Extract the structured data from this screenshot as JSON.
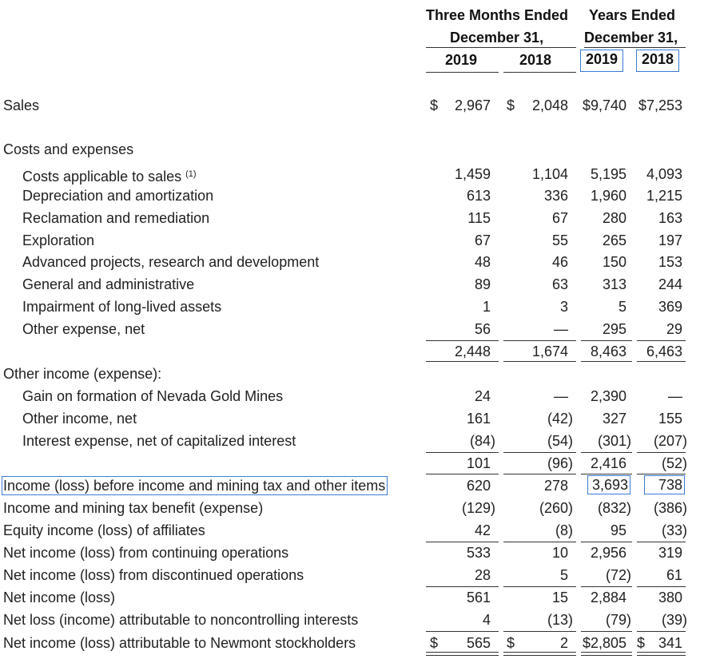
{
  "header": {
    "three_months_line1": "Three Months Ended",
    "three_months_line2": "December 31,",
    "years_line1": "Years Ended",
    "years_line2": "December 31,",
    "col_q2019": "2019",
    "col_q2018": "2018",
    "col_y2019": "2019",
    "col_y2018": "2018"
  },
  "rows": {
    "sales": {
      "label": "Sales",
      "q2019": "2,967",
      "q2018": "2,048",
      "y2019": "$9,740",
      "y2018": "$7,253"
    },
    "costs_header": {
      "label": "Costs and expenses"
    },
    "costs_applicable": {
      "label": "Costs applicable to sales",
      "note": "(1)",
      "q2019": "1,459",
      "q2018": "1,104",
      "y2019": "5,195",
      "y2018": "4,093"
    },
    "depreciation": {
      "label": "Depreciation and amortization",
      "q2019": "613",
      "q2018": "336",
      "y2019": "1,960",
      "y2018": "1,215"
    },
    "reclamation": {
      "label": "Reclamation and remediation",
      "q2019": "115",
      "q2018": "67",
      "y2019": "280",
      "y2018": "163"
    },
    "exploration": {
      "label": "Exploration",
      "q2019": "67",
      "q2018": "55",
      "y2019": "265",
      "y2018": "197"
    },
    "advanced_projects": {
      "label": "Advanced projects, research and development",
      "q2019": "48",
      "q2018": "46",
      "y2019": "150",
      "y2018": "153"
    },
    "general_admin": {
      "label": "General and administrative",
      "q2019": "89",
      "q2018": "63",
      "y2019": "313",
      "y2018": "244"
    },
    "impairment": {
      "label": "Impairment of long-lived assets",
      "q2019": "1",
      "q2018": "3",
      "y2019": "5",
      "y2018": "369"
    },
    "other_expense": {
      "label": "Other expense, net",
      "q2019": "56",
      "q2018": "—",
      "y2019": "295",
      "y2018": "29"
    },
    "costs_total": {
      "q2019": "2,448",
      "q2018": "1,674",
      "y2019": "8,463",
      "y2018": "6,463"
    },
    "other_income_header": {
      "label": "Other income (expense):"
    },
    "gain_nevada": {
      "label": "Gain on formation of Nevada Gold Mines",
      "q2019": "24",
      "q2018": "—",
      "y2019": "2,390",
      "y2018": "—"
    },
    "other_income_net": {
      "label": "Other income, net",
      "q2019": "161",
      "q2018": "(42)",
      "y2019": "327",
      "y2018": "155"
    },
    "interest_expense": {
      "label": "Interest expense, net of capitalized interest",
      "q2019": "(84)",
      "q2018": "(54)",
      "y2019": "(301)",
      "y2018": "(207)"
    },
    "other_total": {
      "q2019": "101",
      "q2018": "(96)",
      "y2019": "2,416",
      "y2018": "(52)"
    },
    "income_before_tax": {
      "label": "Income (loss) before income and mining tax and other items",
      "q2019": "620",
      "q2018": "278",
      "y2019": "3,693",
      "y2018": "738"
    },
    "tax_benefit": {
      "label": "Income and mining tax benefit (expense)",
      "q2019": "(129)",
      "q2018": "(260)",
      "y2019": "(832)",
      "y2018": "(386)"
    },
    "equity_income": {
      "label": "Equity income (loss) of affiliates",
      "q2019": "42",
      "q2018": "(8)",
      "y2019": "95",
      "y2018": "(33)"
    },
    "net_continuing": {
      "label": "Net income (loss) from continuing operations",
      "q2019": "533",
      "q2018": "10",
      "y2019": "2,956",
      "y2018": "319"
    },
    "net_discontinued": {
      "label": "Net income (loss) from discontinued operations",
      "q2019": "28",
      "q2018": "5",
      "y2019": "(72)",
      "y2018": "61"
    },
    "net_income": {
      "label": "Net income (loss)",
      "q2019": "561",
      "q2018": "15",
      "y2019": "2,884",
      "y2018": "380"
    },
    "noncontrolling": {
      "label": "Net loss (income) attributable to noncontrolling interests",
      "q2019": "4",
      "q2018": "(13)",
      "y2019": "(79)",
      "y2018": "(39)"
    },
    "attributable_newmont": {
      "label": "Net income (loss) attributable to Newmont stockholders",
      "q2019": "565",
      "q2018": "2",
      "y2019": "$2,805",
      "y2018": "341"
    }
  },
  "currency_symbol": "$"
}
